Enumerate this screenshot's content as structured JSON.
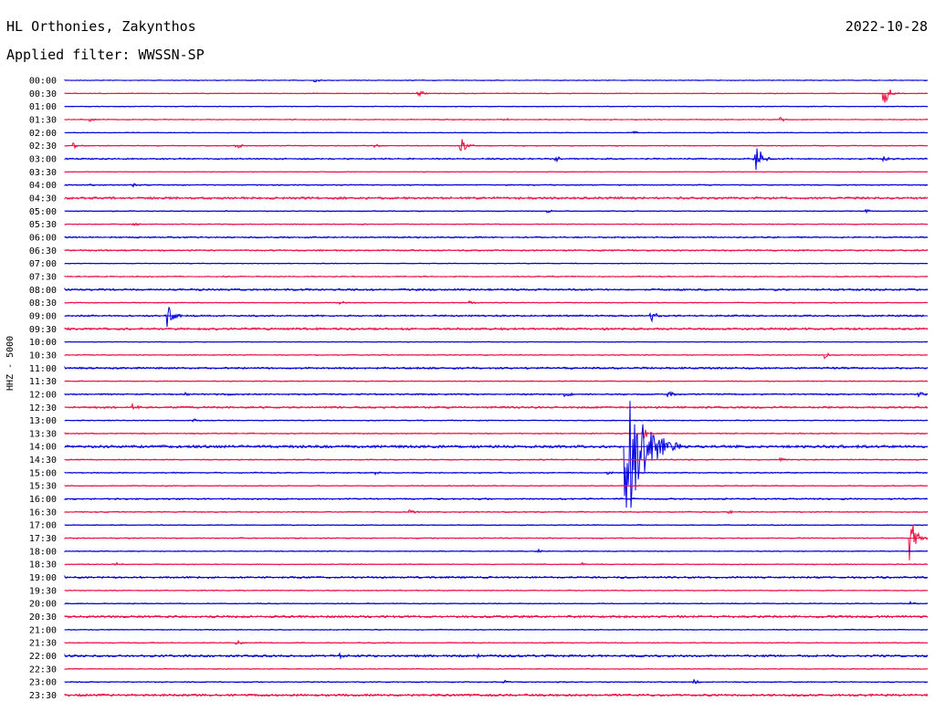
{
  "header": {
    "station": "HL Orthonies, Zakynthos",
    "filter": "Applied filter: WWSSN-SP",
    "date": "2022-10-28",
    "channel": "HHZ - 5000"
  },
  "chart_data": {
    "type": "line",
    "times": [
      "00:00",
      "00:30",
      "01:00",
      "01:30",
      "02:00",
      "02:30",
      "03:00",
      "03:30",
      "04:00",
      "04:30",
      "05:00",
      "05:30",
      "06:00",
      "06:30",
      "07:00",
      "07:30",
      "08:00",
      "08:30",
      "09:00",
      "09:30",
      "10:00",
      "10:30",
      "11:00",
      "11:30",
      "12:00",
      "12:30",
      "13:00",
      "13:30",
      "14:00",
      "14:30",
      "15:00",
      "15:30",
      "16:00",
      "16:30",
      "17:00",
      "17:30",
      "18:00",
      "18:30",
      "19:00",
      "19:30",
      "20:00",
      "20:30",
      "21:00",
      "21:30",
      "22:00",
      "22:30",
      "23:00",
      "23:30"
    ],
    "colors": [
      "#0000dd",
      "#ee1144"
    ],
    "noise": [
      0.4,
      0.4,
      0.4,
      0.5,
      0.4,
      0.5,
      0.8,
      0.4,
      0.6,
      1.2,
      0.5,
      0.5,
      0.8,
      0.8,
      0.4,
      0.6,
      1.0,
      0.5,
      0.9,
      1.2,
      0.4,
      0.5,
      1.0,
      0.5,
      0.8,
      1.0,
      0.5,
      0.6,
      1.4,
      0.6,
      0.6,
      0.5,
      0.8,
      0.6,
      0.5,
      0.6,
      0.5,
      0.5,
      1.0,
      0.5,
      0.5,
      1.2,
      0.5,
      0.5,
      1.2,
      0.5,
      0.6,
      1.2
    ],
    "events": [
      {
        "row": 0,
        "t": 0.29,
        "a": 2
      },
      {
        "row": 1,
        "t": 0.41,
        "a": 4
      },
      {
        "row": 1,
        "t": 0.95,
        "a": 12
      },
      {
        "row": 3,
        "t": 0.03,
        "a": 2
      },
      {
        "row": 3,
        "t": 0.51,
        "a": 2
      },
      {
        "row": 3,
        "t": 0.83,
        "a": 3
      },
      {
        "row": 4,
        "t": 0.66,
        "a": 2
      },
      {
        "row": 5,
        "t": 0.01,
        "a": 4
      },
      {
        "row": 5,
        "t": 0.2,
        "a": 3
      },
      {
        "row": 5,
        "t": 0.36,
        "a": 2
      },
      {
        "row": 5,
        "t": 0.46,
        "a": 8
      },
      {
        "row": 6,
        "t": 0.57,
        "a": 3
      },
      {
        "row": 6,
        "t": 0.8,
        "a": 22
      },
      {
        "row": 6,
        "t": 0.95,
        "a": 3
      },
      {
        "row": 8,
        "t": 0.03,
        "a": 2
      },
      {
        "row": 8,
        "t": 0.08,
        "a": 2
      },
      {
        "row": 10,
        "t": 0.56,
        "a": 2
      },
      {
        "row": 10,
        "t": 0.93,
        "a": 2
      },
      {
        "row": 11,
        "t": 0.08,
        "a": 2
      },
      {
        "row": 17,
        "t": 0.32,
        "a": 2
      },
      {
        "row": 17,
        "t": 0.47,
        "a": 2
      },
      {
        "row": 18,
        "t": 0.12,
        "a": 18
      },
      {
        "row": 18,
        "t": 0.68,
        "a": 7
      },
      {
        "row": 21,
        "t": 0.88,
        "a": 4
      },
      {
        "row": 24,
        "t": 0.14,
        "a": 2
      },
      {
        "row": 24,
        "t": 0.19,
        "a": 2
      },
      {
        "row": 24,
        "t": 0.58,
        "a": 5
      },
      {
        "row": 24,
        "t": 0.7,
        "a": 4
      },
      {
        "row": 24,
        "t": 0.99,
        "a": 4
      },
      {
        "row": 25,
        "t": 0.08,
        "a": 4
      },
      {
        "row": 26,
        "t": 0.15,
        "a": 2
      },
      {
        "row": 27,
        "t": 0.67,
        "a": 9
      },
      {
        "row": 28,
        "t": 0.65,
        "a": 95
      },
      {
        "row": 29,
        "t": 0.83,
        "a": 2
      },
      {
        "row": 30,
        "t": 0.36,
        "a": 2
      },
      {
        "row": 30,
        "t": 0.63,
        "a": 2
      },
      {
        "row": 33,
        "t": 0.4,
        "a": 4
      },
      {
        "row": 33,
        "t": 0.77,
        "a": 2
      },
      {
        "row": 35,
        "t": 0.98,
        "a": 25
      },
      {
        "row": 36,
        "t": 0.55,
        "a": 2
      },
      {
        "row": 37,
        "t": 0.06,
        "a": 2
      },
      {
        "row": 37,
        "t": 0.6,
        "a": 2
      },
      {
        "row": 40,
        "t": 0.98,
        "a": 2
      },
      {
        "row": 43,
        "t": 0.2,
        "a": 3
      },
      {
        "row": 44,
        "t": 0.32,
        "a": 3
      },
      {
        "row": 44,
        "t": 0.48,
        "a": 2
      },
      {
        "row": 46,
        "t": 0.51,
        "a": 2
      },
      {
        "row": 46,
        "t": 0.73,
        "a": 3
      }
    ]
  }
}
